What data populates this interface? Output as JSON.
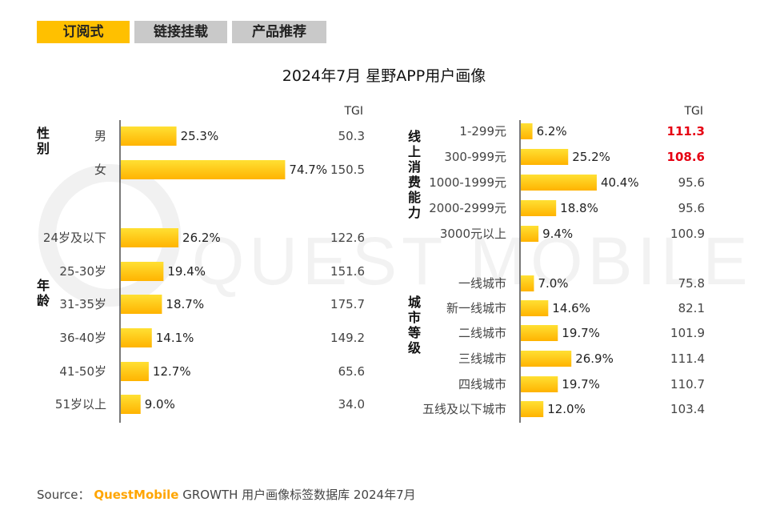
{
  "tabs": [
    {
      "label": "订阅式",
      "active": true
    },
    {
      "label": "链接挂载",
      "active": false
    },
    {
      "label": "产品推荐",
      "active": false
    }
  ],
  "watermark": "QUEST MOBILE",
  "source": {
    "prefix": "Source：",
    "brand": "QuestMobile",
    "text": "GROWTH 用户画像标签数据库 2024年7月"
  },
  "colors": {
    "bar_light": "#ffe033",
    "bar_dark": "#ffb300",
    "highlight": "#e60012",
    "accent": "#ffc000"
  },
  "chart_data": [
    {
      "type": "bar",
      "orientation": "horizontal",
      "title": "2024年7月 星野APP用户画像",
      "tgi_header": "TGI",
      "groups": [
        {
          "name": "性别",
          "categories": [
            "男",
            "女"
          ],
          "values": [
            25.3,
            74.7
          ],
          "labels": [
            "25.3%",
            "74.7%"
          ],
          "tgi": [
            "50.3",
            "150.5"
          ]
        },
        {
          "name": "年龄",
          "categories": [
            "24岁及以下",
            "25-30岁",
            "31-35岁",
            "36-40岁",
            "41-50岁",
            "51岁以上"
          ],
          "values": [
            26.2,
            19.4,
            18.7,
            14.1,
            12.7,
            9.0
          ],
          "labels": [
            "26.2%",
            "19.4%",
            "18.7%",
            "14.1%",
            "12.7%",
            "9.0%"
          ],
          "tgi": [
            "122.6",
            "151.6",
            "175.7",
            "149.2",
            "65.6",
            "34.0"
          ]
        }
      ]
    },
    {
      "type": "bar",
      "orientation": "horizontal",
      "tgi_header": "TGI",
      "groups": [
        {
          "name": "线上消费能力",
          "categories": [
            "1-299元",
            "300-999元",
            "1000-1999元",
            "2000-2999元",
            "3000元以上"
          ],
          "values": [
            6.2,
            25.2,
            40.4,
            18.8,
            9.4
          ],
          "labels": [
            "6.2%",
            "25.2%",
            "40.4%",
            "18.8%",
            "9.4%"
          ],
          "tgi": [
            "111.3",
            "108.6",
            "95.6",
            "95.6",
            "100.9"
          ],
          "tgi_highlight": [
            true,
            true,
            false,
            false,
            false
          ]
        },
        {
          "name": "城市等级",
          "categories": [
            "一线城市",
            "新一线城市",
            "二线城市",
            "三线城市",
            "四线城市",
            "五线及以下城市"
          ],
          "values": [
            7.0,
            14.6,
            19.7,
            26.9,
            19.7,
            12.0
          ],
          "labels": [
            "7.0%",
            "14.6%",
            "19.7%",
            "26.9%",
            "19.7%",
            "12.0%"
          ],
          "tgi": [
            "75.8",
            "82.1",
            "101.9",
            "111.4",
            "110.7",
            "103.4"
          ]
        }
      ]
    }
  ]
}
